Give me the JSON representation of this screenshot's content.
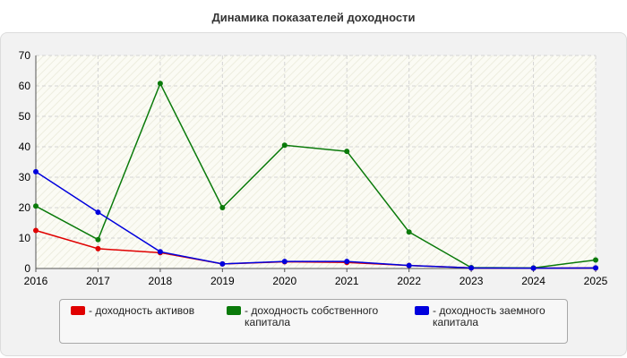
{
  "chart_data": {
    "type": "line",
    "title": "Динамика показателей доходности",
    "xlabel": "",
    "ylabel": "",
    "categories": [
      "2016",
      "2017",
      "2018",
      "2019",
      "2020",
      "2021",
      "2022",
      "2023",
      "2024",
      "2025"
    ],
    "ylim": [
      0,
      70
    ],
    "yticks": [
      0,
      10,
      20,
      30,
      40,
      50,
      60,
      70
    ],
    "grid": true,
    "legend_position": "bottom",
    "series": [
      {
        "name": "- доходность активов",
        "color": "#e00000",
        "values": [
          12.5,
          6.5,
          5.2,
          1.5,
          2.2,
          2.0,
          1.0,
          0.2,
          0.1,
          0.2
        ]
      },
      {
        "name": "- доходность собственного капитала",
        "color": "#0a7a0a",
        "values": [
          20.5,
          9.5,
          60.8,
          20.0,
          40.5,
          38.5,
          12.0,
          0.3,
          0.2,
          2.8
        ]
      },
      {
        "name": "- доходность заемного капитала",
        "color": "#0000dd",
        "values": [
          31.8,
          18.5,
          5.5,
          1.5,
          2.3,
          2.3,
          1.0,
          0.2,
          0.1,
          0.2
        ]
      }
    ]
  }
}
